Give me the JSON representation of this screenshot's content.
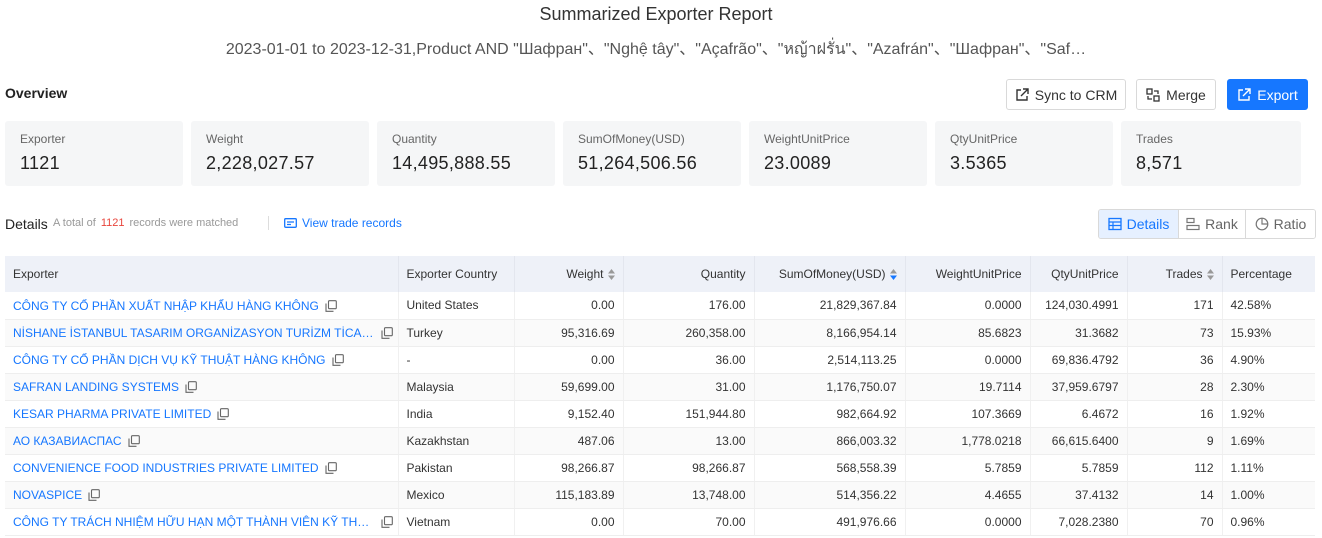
{
  "header": {
    "title": "Summarized Exporter Report",
    "subtitle": "2023-01-01 to 2023-12-31,Product AND \"Шафран\"、\"Nghệ tây\"、\"Açafrão\"、\"หญ้าฝรั่น\"、\"Azafrán\"、\"Шафран\"、\"Saf…"
  },
  "overview": {
    "label": "Overview",
    "buttons": {
      "sync": "Sync to CRM",
      "merge": "Merge",
      "export": "Export"
    },
    "stats": [
      {
        "label": "Exporter",
        "value": "1121"
      },
      {
        "label": "Weight",
        "value": "2,228,027.57"
      },
      {
        "label": "Quantity",
        "value": "14,495,888.55"
      },
      {
        "label": "SumOfMoney(USD)",
        "value": "51,264,506.56"
      },
      {
        "label": "WeightUnitPrice",
        "value": "23.0089"
      },
      {
        "label": "QtyUnitPrice",
        "value": "3.5365"
      },
      {
        "label": "Trades",
        "value": "8,571"
      }
    ]
  },
  "details": {
    "label": "Details",
    "meta_prefix": "A total of",
    "meta_count": "1121",
    "meta_suffix": "records were matched",
    "view_trade": "View trade records",
    "toggles": {
      "details": "Details",
      "rank": "Rank",
      "ratio": "Ratio"
    }
  },
  "table": {
    "columns": {
      "exporter": "Exporter",
      "country": "Exporter Country",
      "weight": "Weight",
      "quantity": "Quantity",
      "sum": "SumOfMoney(USD)",
      "wup": "WeightUnitPrice",
      "qup": "QtyUnitPrice",
      "trades": "Trades",
      "percentage": "Percentage"
    },
    "rows": [
      {
        "exporter": "CÔNG TY CỔ PHẦN XUẤT NHẬP KHẨU HÀNG KHÔNG",
        "country": "United States",
        "weight": "0.00",
        "quantity": "176.00",
        "sum": "21,829,367.84",
        "wup": "0.0000",
        "qup": "124,030.4991",
        "trades": "171",
        "percentage": "42.58%"
      },
      {
        "exporter": "NİSHANE İSTANBUL TASARIM ORGANİZASYON TURİZM TİCARET VE SANAYİ",
        "country": "Turkey",
        "weight": "95,316.69",
        "quantity": "260,358.00",
        "sum": "8,166,954.14",
        "wup": "85.6823",
        "qup": "31.3682",
        "trades": "73",
        "percentage": "15.93%"
      },
      {
        "exporter": "CÔNG TY CỔ PHẦN DỊCH VỤ KỸ THUẬT HÀNG KHÔNG",
        "country": "-",
        "weight": "0.00",
        "quantity": "36.00",
        "sum": "2,514,113.25",
        "wup": "0.0000",
        "qup": "69,836.4792",
        "trades": "36",
        "percentage": "4.90%"
      },
      {
        "exporter": "SAFRAN LANDING SYSTEMS",
        "country": "Malaysia",
        "weight": "59,699.00",
        "quantity": "31.00",
        "sum": "1,176,750.07",
        "wup": "19.7114",
        "qup": "37,959.6797",
        "trades": "28",
        "percentage": "2.30%"
      },
      {
        "exporter": "KESAR PHARMA PRIVATE LIMITED",
        "country": "India",
        "weight": "9,152.40",
        "quantity": "151,944.80",
        "sum": "982,664.92",
        "wup": "107.3669",
        "qup": "6.4672",
        "trades": "16",
        "percentage": "1.92%"
      },
      {
        "exporter": "АО КАЗАВИАСПАС",
        "country": "Kazakhstan",
        "weight": "487.06",
        "quantity": "13.00",
        "sum": "866,003.32",
        "wup": "1,778.0218",
        "qup": "66,615.6400",
        "trades": "9",
        "percentage": "1.69%"
      },
      {
        "exporter": "CONVENIENCE FOOD INDUSTRIES PRIVATE LIMITED",
        "country": "Pakistan",
        "weight": "98,266.87",
        "quantity": "98,266.87",
        "sum": "568,558.39",
        "wup": "5.7859",
        "qup": "5.7859",
        "trades": "112",
        "percentage": "1.11%"
      },
      {
        "exporter": "NOVASPICE",
        "country": "Mexico",
        "weight": "115,183.89",
        "quantity": "13,748.00",
        "sum": "514,356.22",
        "wup": "4.4655",
        "qup": "37.4132",
        "trades": "14",
        "percentage": "1.00%"
      },
      {
        "exporter": "CÔNG TY TRÁCH NHIỆM HỮU HẠN MỘT THÀNH VIÊN KỸ THUẬT MÁY BAY",
        "country": "Vietnam",
        "weight": "0.00",
        "quantity": "70.00",
        "sum": "491,976.66",
        "wup": "0.0000",
        "qup": "7,028.2380",
        "trades": "70",
        "percentage": "0.96%"
      }
    ]
  },
  "colors": {
    "accent": "#1677ff",
    "highlight": "#e8453c",
    "header_bg": "#eef1f8",
    "card_bg": "#f5f6f7"
  }
}
